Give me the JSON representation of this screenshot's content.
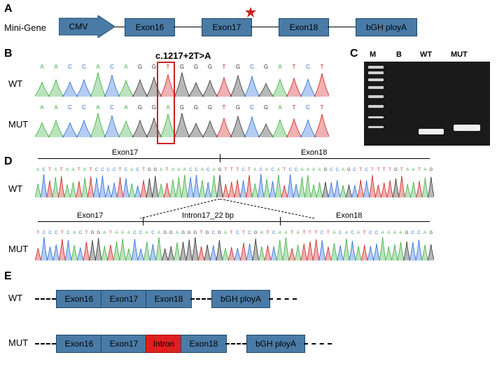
{
  "panelA": {
    "label": "A",
    "leftLabel": "Mini-Gene",
    "promoter": "CMV",
    "exons": [
      "Exon16",
      "Exon17",
      "Exon18",
      "bGH ployA"
    ],
    "promoter_color": "#4a7ba6",
    "exon_color": "#4a7ba6",
    "line_color": "#000000",
    "star_color": "#d02020"
  },
  "panelB": {
    "label": "B",
    "mutation_title": "c.1217+2T>A",
    "rows": [
      "WT",
      "MUT"
    ],
    "sequence_wt": "A A C C A C A G G T G G G T G C G A T C T",
    "sequence_mut": "A A C C A C A G G A G G G T G C G A T C T",
    "highlight_index": 9,
    "peak_colors": {
      "A": "#3cb043",
      "C": "#2a6ed6",
      "G": "#333333",
      "T": "#d02020"
    },
    "background": "#ffffff"
  },
  "panelC": {
    "label": "C",
    "lanes": [
      "M",
      "B",
      "WT",
      "MUT"
    ],
    "gel_bg": "#111111",
    "band_color": "#eeeeee",
    "ladder_color": "#cccccc"
  },
  "panelD": {
    "label": "D",
    "rows": [
      "WT",
      "MUT"
    ],
    "wt_regions": [
      "Exon17",
      "Exon18"
    ],
    "mut_regions": [
      "Exon17",
      "Intron17_22 bp",
      "Exon18"
    ],
    "seq_wt": "ACTATAATATCCCCTCACTGGATAAACCACAGTTTCTACACATCCAAAAGCCAGCTCTTTTGTAATAG",
    "seq_mut": "TCCCTCACTGGATAAACCACAGGAGGGTGCGATCTCGATCAATATTTCTACACATCCAAAAGCCAG",
    "peak_colors": {
      "A": "#3cb043",
      "C": "#2a6ed6",
      "G": "#333333",
      "T": "#d02020"
    }
  },
  "panelE": {
    "label": "E",
    "rows": [
      "WT",
      "MUT"
    ],
    "wt_blocks": [
      "Exon16",
      "Exon17",
      "Exon18",
      "bGH ployA"
    ],
    "mut_blocks": [
      "Exon16",
      "Exon17",
      "Intron",
      "Exon18",
      "bGH ployA"
    ],
    "intron_color": "#e02020",
    "exon_color": "#4a7ba6"
  }
}
